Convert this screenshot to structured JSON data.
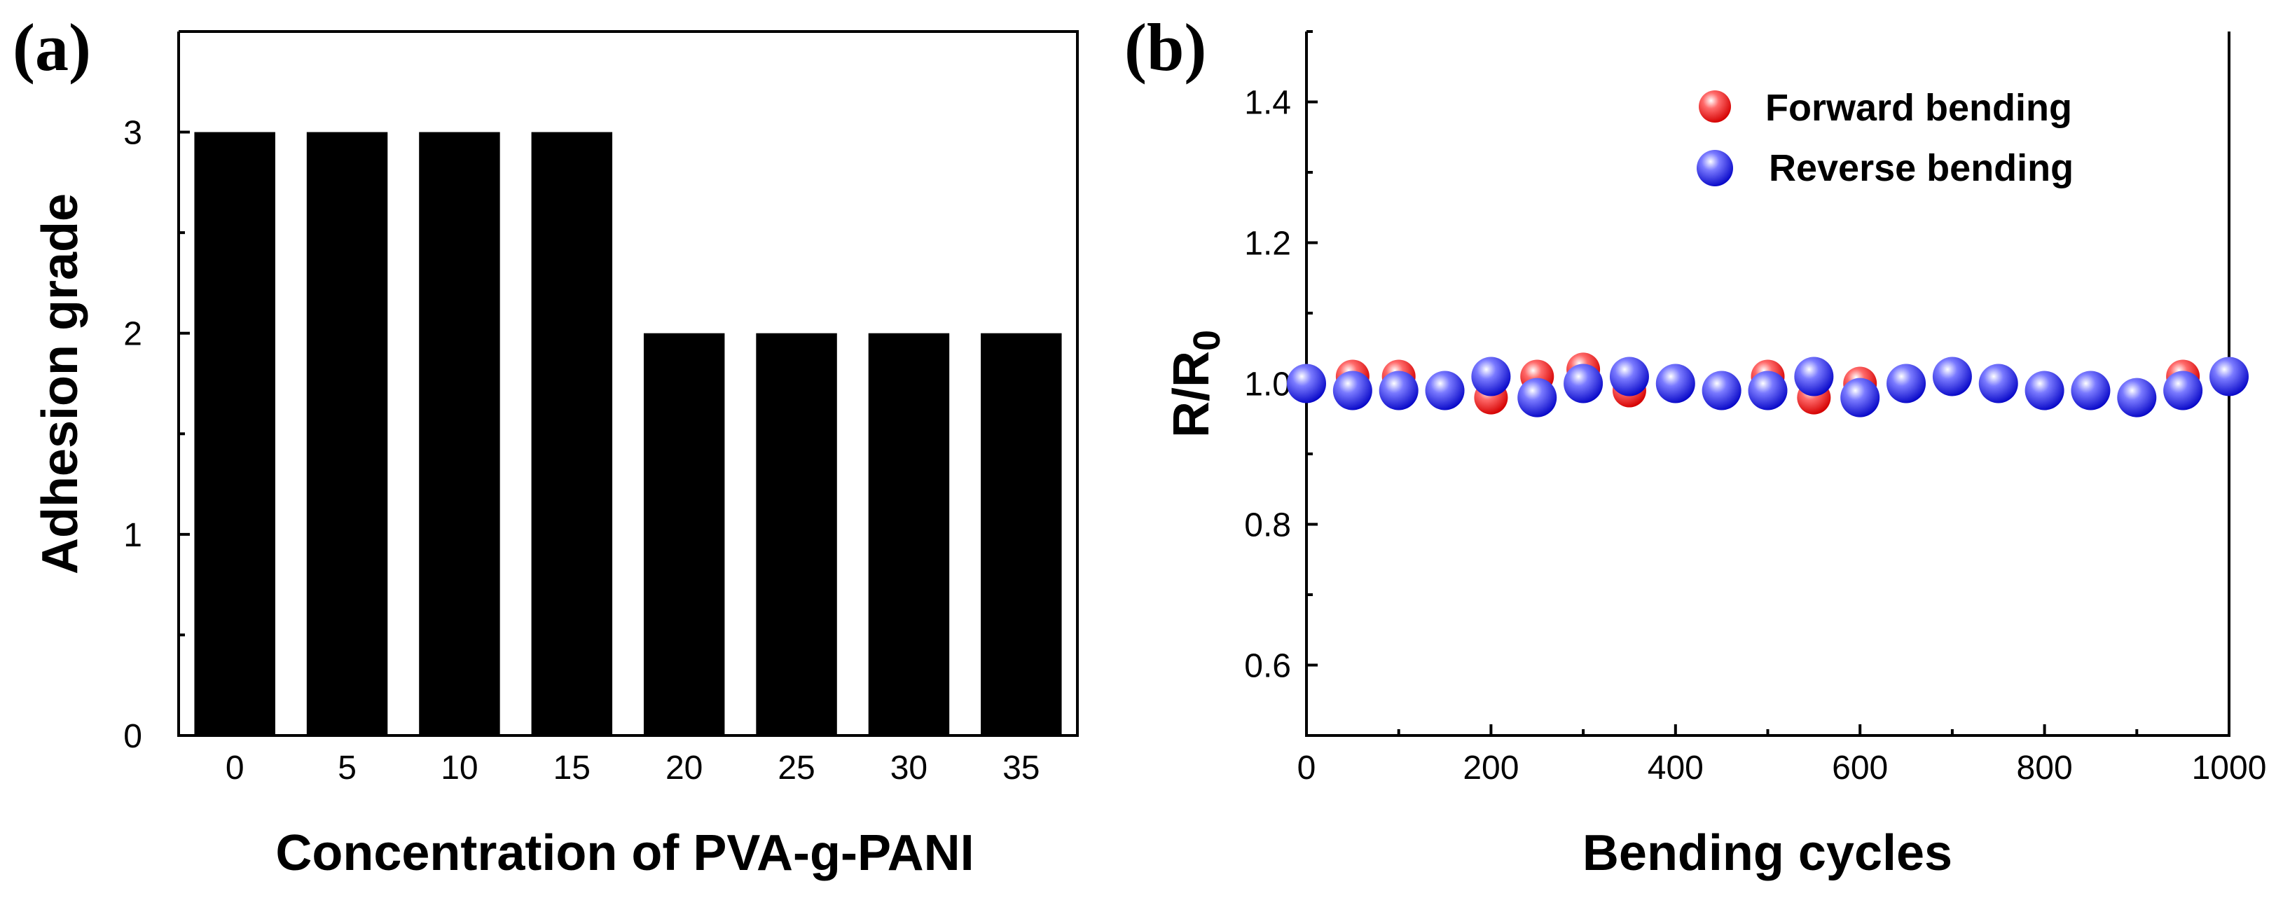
{
  "panels": {
    "a": {
      "label": "(a)"
    },
    "b": {
      "label": "(b)"
    }
  },
  "colors": {
    "bar": "#000000",
    "forward": "#ff1010",
    "reverse": "#1a1aff",
    "highlight": "#ffffff"
  },
  "chart_data": [
    {
      "type": "bar",
      "title": "",
      "categories": [
        "0",
        "5",
        "10",
        "15",
        "20",
        "25",
        "30",
        "35"
      ],
      "values": [
        3,
        3,
        3,
        3,
        2,
        2,
        2,
        2
      ],
      "xlabel": "Concentration of PVA-g-PANI",
      "ylabel": "Adhesion grade",
      "ylim": [
        0,
        3.5
      ],
      "yticks": [
        "0",
        "1",
        "2",
        "3"
      ],
      "grid": false
    },
    {
      "type": "scatter",
      "title": "",
      "xlabel": "Bending cycles",
      "ylabel_main": "R/R",
      "ylabel_sub": "0",
      "xlim": [
        0,
        1000
      ],
      "ylim": [
        0.5,
        1.5
      ],
      "xticks": [
        "0",
        "200",
        "400",
        "600",
        "800",
        "1000"
      ],
      "yticks": [
        "0.6",
        "0.8",
        "1.0",
        "1.2",
        "1.4"
      ],
      "legend_position": "top-right",
      "grid": false,
      "series": [
        {
          "name": "Forward bending",
          "x": [
            0,
            50,
            100,
            150,
            200,
            250,
            300,
            350,
            400,
            450,
            500,
            550,
            600,
            650,
            700,
            750,
            800,
            850,
            900,
            950,
            1000
          ],
          "values": [
            1.0,
            1.01,
            1.01,
            0.99,
            0.98,
            1.01,
            1.02,
            0.99,
            1.0,
            0.99,
            1.01,
            0.98,
            1.0,
            1.0,
            1.01,
            1.0,
            0.99,
            0.99,
            0.98,
            1.01,
            1.01
          ]
        },
        {
          "name": "Reverse bending",
          "x": [
            0,
            50,
            100,
            150,
            200,
            250,
            300,
            350,
            400,
            450,
            500,
            550,
            600,
            650,
            700,
            750,
            800,
            850,
            900,
            950,
            1000
          ],
          "values": [
            1.0,
            0.99,
            0.99,
            0.99,
            1.01,
            0.98,
            1.0,
            1.01,
            1.0,
            0.99,
            0.99,
            1.01,
            0.98,
            1.0,
            1.01,
            1.0,
            0.99,
            0.99,
            0.98,
            0.99,
            1.01
          ]
        }
      ]
    }
  ]
}
